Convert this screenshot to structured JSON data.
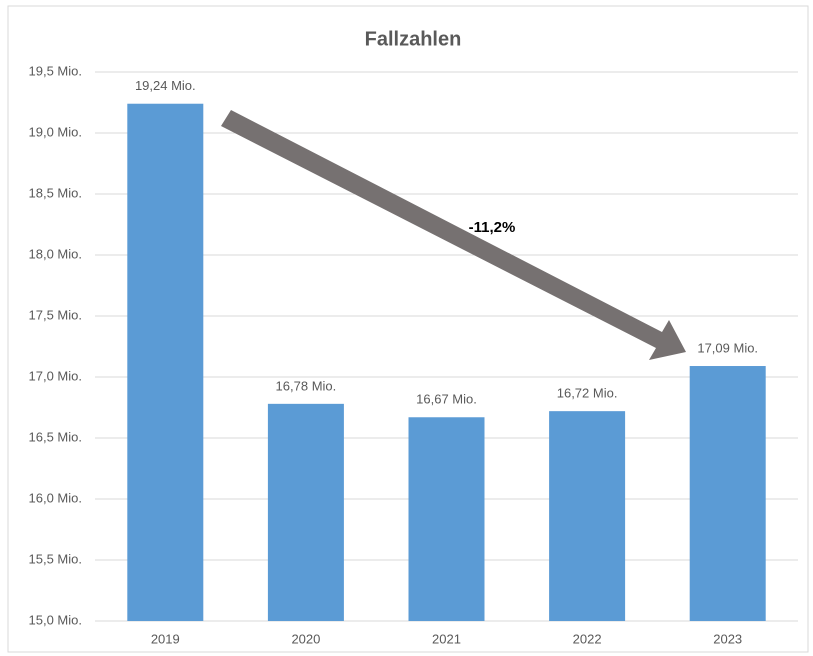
{
  "chart_data": {
    "type": "bar",
    "title": "Fallzahlen",
    "categories": [
      "2019",
      "2020",
      "2021",
      "2022",
      "2023"
    ],
    "values": [
      19.24,
      16.78,
      16.67,
      16.72,
      17.09
    ],
    "value_labels": [
      "19,24 Mio.",
      "16,78 Mio.",
      "16,67 Mio.",
      "16,72 Mio.",
      "17,09 Mio."
    ],
    "color": "#5b9bd5",
    "ylim": [
      15.0,
      19.5
    ],
    "yticks": [
      {
        "value": 15.0,
        "label": "15,0 Mio."
      },
      {
        "value": 15.5,
        "label": "15,5 Mio."
      },
      {
        "value": 16.0,
        "label": "16,0 Mio."
      },
      {
        "value": 16.5,
        "label": "16,5 Mio."
      },
      {
        "value": 17.0,
        "label": "17,0 Mio."
      },
      {
        "value": 17.5,
        "label": "17,5 Mio."
      },
      {
        "value": 18.0,
        "label": "18,0 Mio."
      },
      {
        "value": 18.5,
        "label": "18,5 Mio."
      },
      {
        "value": 19.0,
        "label": "19,0 Mio."
      },
      {
        "value": 19.5,
        "label": "19,5 Mio."
      }
    ],
    "grid": true,
    "annotations": [
      "-11,2%"
    ]
  }
}
